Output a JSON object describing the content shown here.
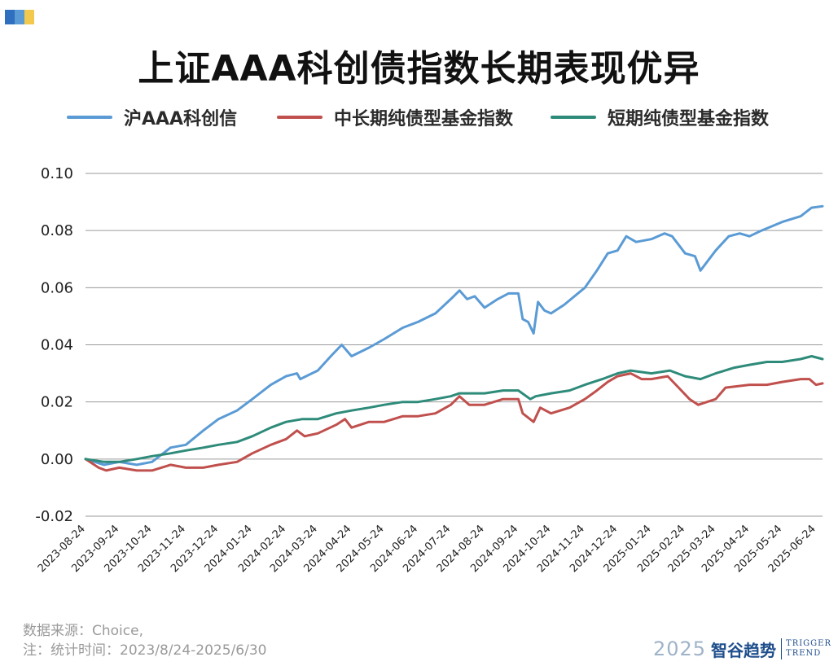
{
  "colors": {
    "blue": "#5b9bd5",
    "red": "#c0504d",
    "green": "#2e8b7a",
    "grid": "#9a9a9a",
    "corner": [
      "#2f6fc0",
      "#5b9bd5",
      "#f2c94c"
    ]
  },
  "chart_data": {
    "type": "line",
    "title": "上证AAA科创债指数长期表现优异",
    "ylim": [
      -0.02,
      0.1
    ],
    "yticks": [
      -0.02,
      0.0,
      0.02,
      0.04,
      0.06,
      0.08,
      0.1
    ],
    "ytick_labels": [
      "-0.02",
      "0.00",
      "0.02",
      "0.04",
      "0.06",
      "0.08",
      "0.10"
    ],
    "xlim": [
      "2023-08-24",
      "2025-06-30"
    ],
    "xticks": [
      "2023-08-24",
      "2023-09-24",
      "2023-10-24",
      "2023-11-24",
      "2023-12-24",
      "2024-01-24",
      "2024-02-24",
      "2024-03-24",
      "2024-04-24",
      "2024-05-24",
      "2024-06-24",
      "2024-07-24",
      "2024-08-24",
      "2024-09-24",
      "2024-10-24",
      "2024-11-24",
      "2024-12-24",
      "2025-01-24",
      "2025-02-24",
      "2025-03-24",
      "2025-04-24",
      "2025-05-24",
      "2025-06-24"
    ],
    "grid": "horizontal",
    "legend_position": "top",
    "series": [
      {
        "name": "沪AAA科创信",
        "color": "#5b9bd5",
        "points": [
          [
            "2023-08-24",
            0.0
          ],
          [
            "2023-09-10",
            -0.002
          ],
          [
            "2023-09-24",
            -0.001
          ],
          [
            "2023-10-10",
            -0.002
          ],
          [
            "2023-10-24",
            -0.001
          ],
          [
            "2023-11-10",
            0.004
          ],
          [
            "2023-11-24",
            0.005
          ],
          [
            "2023-12-10",
            0.01
          ],
          [
            "2023-12-24",
            0.014
          ],
          [
            "2024-01-10",
            0.017
          ],
          [
            "2024-01-24",
            0.021
          ],
          [
            "2024-02-10",
            0.026
          ],
          [
            "2024-02-24",
            0.029
          ],
          [
            "2024-03-05",
            0.03
          ],
          [
            "2024-03-08",
            0.028
          ],
          [
            "2024-03-24",
            0.031
          ],
          [
            "2024-04-05",
            0.036
          ],
          [
            "2024-04-15",
            0.04
          ],
          [
            "2024-04-24",
            0.036
          ],
          [
            "2024-05-10",
            0.039
          ],
          [
            "2024-05-24",
            0.042
          ],
          [
            "2024-06-10",
            0.046
          ],
          [
            "2024-06-24",
            0.048
          ],
          [
            "2024-07-10",
            0.051
          ],
          [
            "2024-07-24",
            0.056
          ],
          [
            "2024-08-01",
            0.059
          ],
          [
            "2024-08-08",
            0.056
          ],
          [
            "2024-08-15",
            0.057
          ],
          [
            "2024-08-24",
            0.053
          ],
          [
            "2024-09-05",
            0.056
          ],
          [
            "2024-09-15",
            0.058
          ],
          [
            "2024-09-24",
            0.058
          ],
          [
            "2024-09-28",
            0.049
          ],
          [
            "2024-10-03",
            0.048
          ],
          [
            "2024-10-08",
            0.044
          ],
          [
            "2024-10-12",
            0.055
          ],
          [
            "2024-10-18",
            0.052
          ],
          [
            "2024-10-24",
            0.051
          ],
          [
            "2024-11-05",
            0.054
          ],
          [
            "2024-11-24",
            0.06
          ],
          [
            "2024-12-05",
            0.066
          ],
          [
            "2024-12-15",
            0.072
          ],
          [
            "2024-12-24",
            0.073
          ],
          [
            "2025-01-01",
            0.078
          ],
          [
            "2025-01-10",
            0.076
          ],
          [
            "2025-01-24",
            0.077
          ],
          [
            "2025-02-05",
            0.079
          ],
          [
            "2025-02-12",
            0.078
          ],
          [
            "2025-02-24",
            0.072
          ],
          [
            "2025-03-05",
            0.071
          ],
          [
            "2025-03-10",
            0.066
          ],
          [
            "2025-03-24",
            0.073
          ],
          [
            "2025-04-05",
            0.078
          ],
          [
            "2025-04-15",
            0.079
          ],
          [
            "2025-04-24",
            0.078
          ],
          [
            "2025-05-05",
            0.08
          ],
          [
            "2025-05-24",
            0.083
          ],
          [
            "2025-06-10",
            0.085
          ],
          [
            "2025-06-20",
            0.088
          ],
          [
            "2025-06-30",
            0.0885
          ]
        ]
      },
      {
        "name": "中长期纯债型基金指数",
        "color": "#c0504d",
        "points": [
          [
            "2023-08-24",
            0.0
          ],
          [
            "2023-09-05",
            -0.003
          ],
          [
            "2023-09-12",
            -0.004
          ],
          [
            "2023-09-24",
            -0.003
          ],
          [
            "2023-10-10",
            -0.004
          ],
          [
            "2023-10-24",
            -0.004
          ],
          [
            "2023-11-10",
            -0.002
          ],
          [
            "2023-11-24",
            -0.003
          ],
          [
            "2023-12-10",
            -0.003
          ],
          [
            "2023-12-24",
            -0.002
          ],
          [
            "2024-01-10",
            -0.001
          ],
          [
            "2024-01-24",
            0.002
          ],
          [
            "2024-02-10",
            0.005
          ],
          [
            "2024-02-24",
            0.007
          ],
          [
            "2024-03-05",
            0.01
          ],
          [
            "2024-03-12",
            0.008
          ],
          [
            "2024-03-24",
            0.009
          ],
          [
            "2024-04-10",
            0.012
          ],
          [
            "2024-04-18",
            0.014
          ],
          [
            "2024-04-24",
            0.011
          ],
          [
            "2024-05-10",
            0.013
          ],
          [
            "2024-05-24",
            0.013
          ],
          [
            "2024-06-10",
            0.015
          ],
          [
            "2024-06-24",
            0.015
          ],
          [
            "2024-07-10",
            0.016
          ],
          [
            "2024-07-24",
            0.019
          ],
          [
            "2024-08-01",
            0.022
          ],
          [
            "2024-08-10",
            0.019
          ],
          [
            "2024-08-24",
            0.019
          ],
          [
            "2024-09-10",
            0.021
          ],
          [
            "2024-09-24",
            0.021
          ],
          [
            "2024-09-28",
            0.016
          ],
          [
            "2024-10-08",
            0.013
          ],
          [
            "2024-10-14",
            0.018
          ],
          [
            "2024-10-24",
            0.016
          ],
          [
            "2024-11-10",
            0.018
          ],
          [
            "2024-11-24",
            0.021
          ],
          [
            "2024-12-05",
            0.024
          ],
          [
            "2024-12-15",
            0.027
          ],
          [
            "2024-12-24",
            0.029
          ],
          [
            "2025-01-05",
            0.03
          ],
          [
            "2025-01-15",
            0.028
          ],
          [
            "2025-01-24",
            0.028
          ],
          [
            "2025-02-08",
            0.029
          ],
          [
            "2025-02-18",
            0.025
          ],
          [
            "2025-02-28",
            0.021
          ],
          [
            "2025-03-08",
            0.019
          ],
          [
            "2025-03-24",
            0.021
          ],
          [
            "2025-04-02",
            0.025
          ],
          [
            "2025-04-24",
            0.026
          ],
          [
            "2025-05-10",
            0.026
          ],
          [
            "2025-05-24",
            0.027
          ],
          [
            "2025-06-10",
            0.028
          ],
          [
            "2025-06-18",
            0.028
          ],
          [
            "2025-06-24",
            0.026
          ],
          [
            "2025-06-30",
            0.0265
          ]
        ]
      },
      {
        "name": "短期纯债型基金指数",
        "color": "#2e8b7a",
        "points": [
          [
            "2023-08-24",
            0.0
          ],
          [
            "2023-09-10",
            -0.001
          ],
          [
            "2023-09-24",
            -0.001
          ],
          [
            "2023-10-10",
            0.0
          ],
          [
            "2023-10-24",
            0.001
          ],
          [
            "2023-11-10",
            0.002
          ],
          [
            "2023-11-24",
            0.003
          ],
          [
            "2023-12-10",
            0.004
          ],
          [
            "2023-12-24",
            0.005
          ],
          [
            "2024-01-10",
            0.006
          ],
          [
            "2024-01-24",
            0.008
          ],
          [
            "2024-02-10",
            0.011
          ],
          [
            "2024-02-24",
            0.013
          ],
          [
            "2024-03-10",
            0.014
          ],
          [
            "2024-03-24",
            0.014
          ],
          [
            "2024-04-10",
            0.016
          ],
          [
            "2024-04-24",
            0.017
          ],
          [
            "2024-05-10",
            0.018
          ],
          [
            "2024-05-24",
            0.019
          ],
          [
            "2024-06-10",
            0.02
          ],
          [
            "2024-06-24",
            0.02
          ],
          [
            "2024-07-10",
            0.021
          ],
          [
            "2024-07-24",
            0.022
          ],
          [
            "2024-08-01",
            0.023
          ],
          [
            "2024-08-24",
            0.023
          ],
          [
            "2024-09-10",
            0.024
          ],
          [
            "2024-09-24",
            0.024
          ],
          [
            "2024-10-05",
            0.021
          ],
          [
            "2024-10-10",
            0.022
          ],
          [
            "2024-10-24",
            0.023
          ],
          [
            "2024-11-10",
            0.024
          ],
          [
            "2024-11-24",
            0.026
          ],
          [
            "2024-12-10",
            0.028
          ],
          [
            "2024-12-24",
            0.03
          ],
          [
            "2025-01-05",
            0.031
          ],
          [
            "2025-01-24",
            0.03
          ],
          [
            "2025-02-10",
            0.031
          ],
          [
            "2025-02-24",
            0.029
          ],
          [
            "2025-03-10",
            0.028
          ],
          [
            "2025-03-24",
            0.03
          ],
          [
            "2025-04-10",
            0.032
          ],
          [
            "2025-04-24",
            0.033
          ],
          [
            "2025-05-10",
            0.034
          ],
          [
            "2025-05-24",
            0.034
          ],
          [
            "2025-06-10",
            0.035
          ],
          [
            "2025-06-20",
            0.036
          ],
          [
            "2025-06-30",
            0.035
          ]
        ]
      }
    ]
  },
  "footnotes": {
    "source": "数据来源：Choice,",
    "note": "注：统计时间：2023/8/24-2025/6/30"
  },
  "brand": {
    "year": "2025",
    "name_cn": "智谷趋势",
    "name_en_1": "TRIGGER",
    "name_en_2": "TREND"
  }
}
